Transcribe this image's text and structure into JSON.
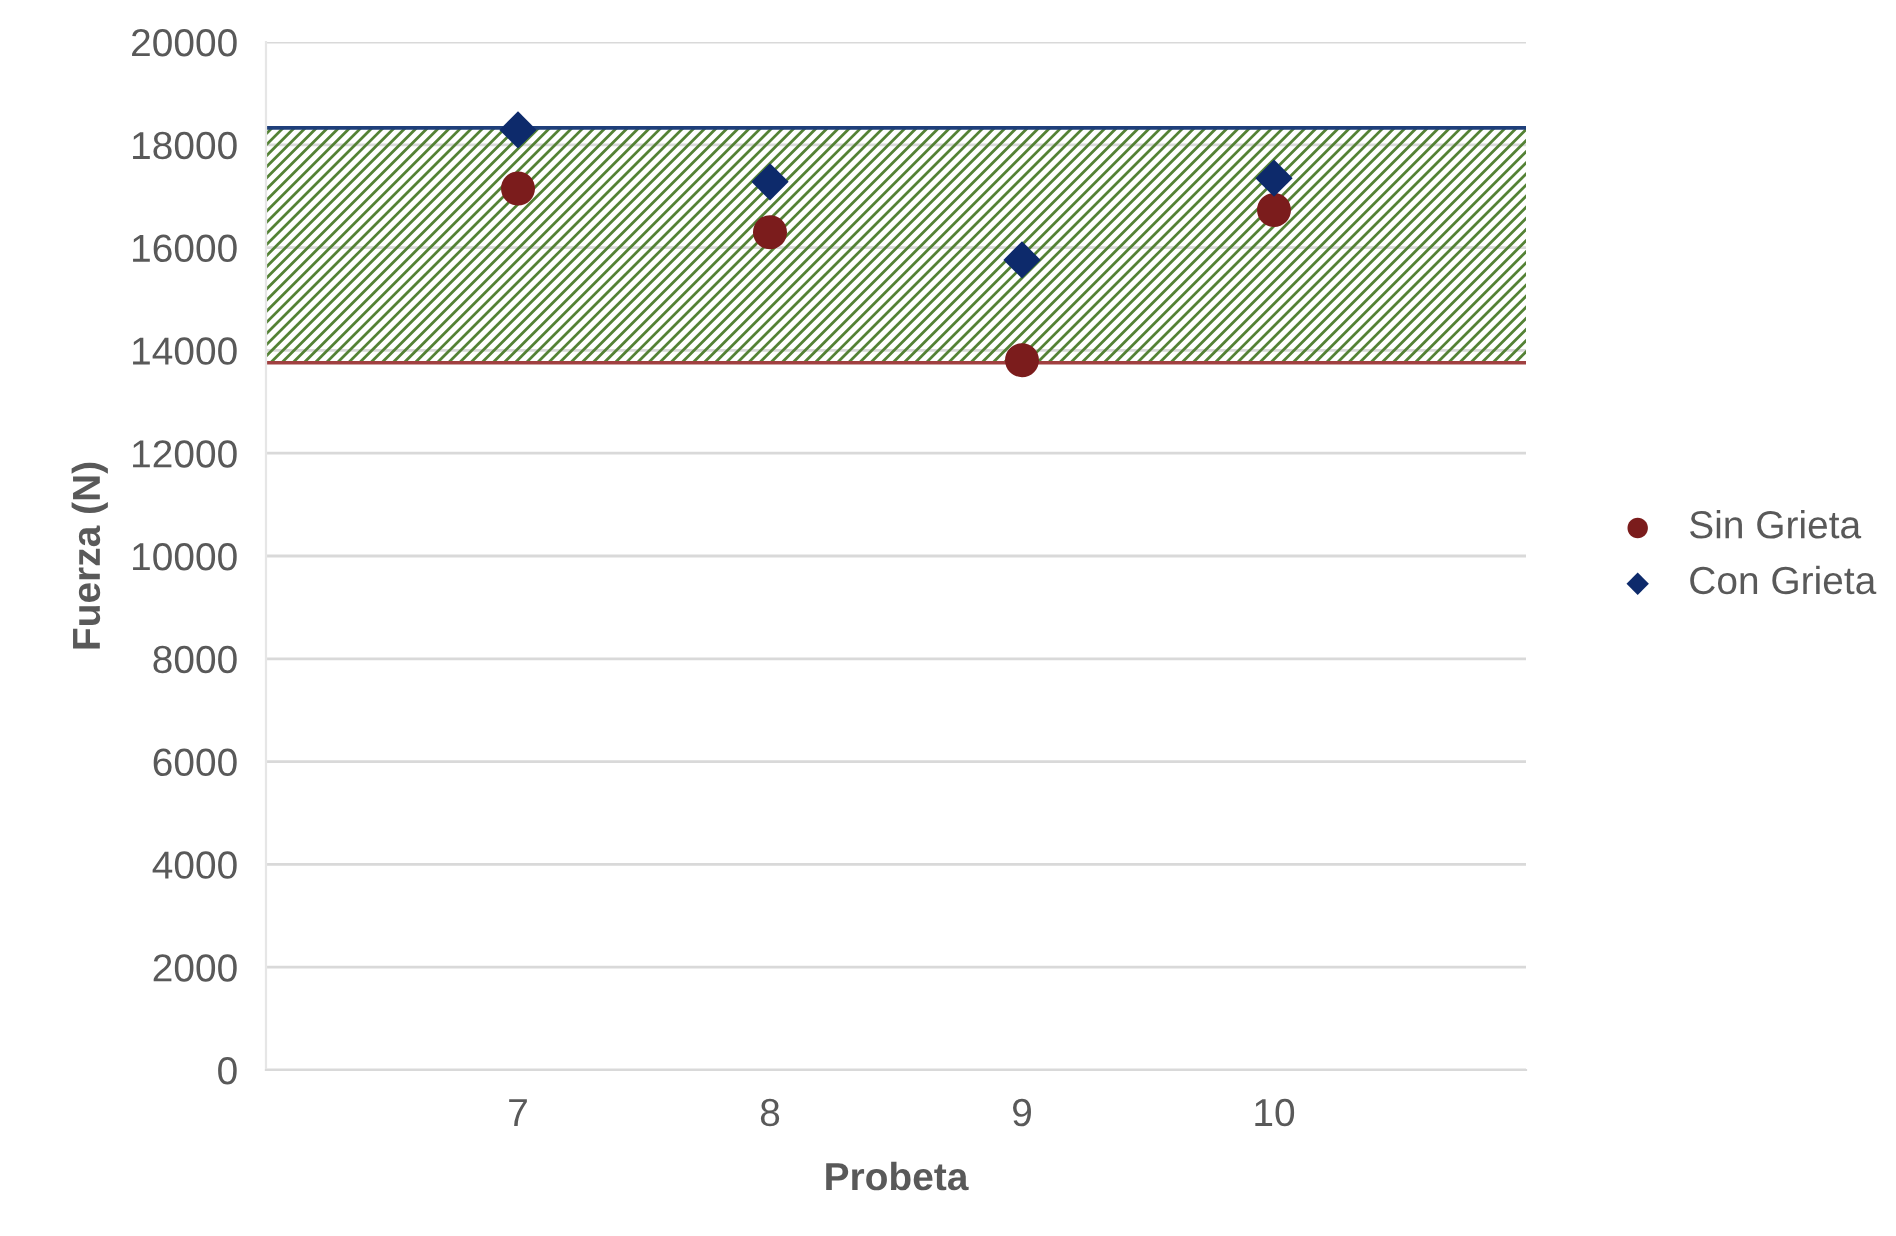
{
  "chart_data": {
    "type": "scatter",
    "xlabel": "Probeta",
    "ylabel": "Fuerza (N)",
    "x": [
      7,
      8,
      9,
      10
    ],
    "series": [
      {
        "name": "Sin Grieta",
        "color": "#7b1c1c",
        "marker": "circle",
        "values": [
          17150,
          16300,
          13810,
          16730
        ]
      },
      {
        "name": "Con Grieta",
        "color": "#0d2a6b",
        "marker": "diamond",
        "values": [
          18290,
          17280,
          15760,
          17350
        ]
      }
    ],
    "bands": [
      {
        "axis": "y",
        "from": 13760,
        "to": 18330,
        "color": "#548235"
      }
    ],
    "ref_lines": [
      {
        "axis": "y",
        "value": 18330,
        "color": "#1f3f7a"
      },
      {
        "axis": "y",
        "value": 13760,
        "color": "#a04040"
      }
    ],
    "xlim": [
      6,
      11
    ],
    "xticks": [
      7,
      8,
      9,
      10
    ],
    "ylim": [
      0,
      20000
    ],
    "yticks": [
      0,
      2000,
      4000,
      6000,
      8000,
      10000,
      12000,
      14000,
      16000,
      18000,
      20000
    ],
    "grid": "y",
    "legend": "right"
  }
}
